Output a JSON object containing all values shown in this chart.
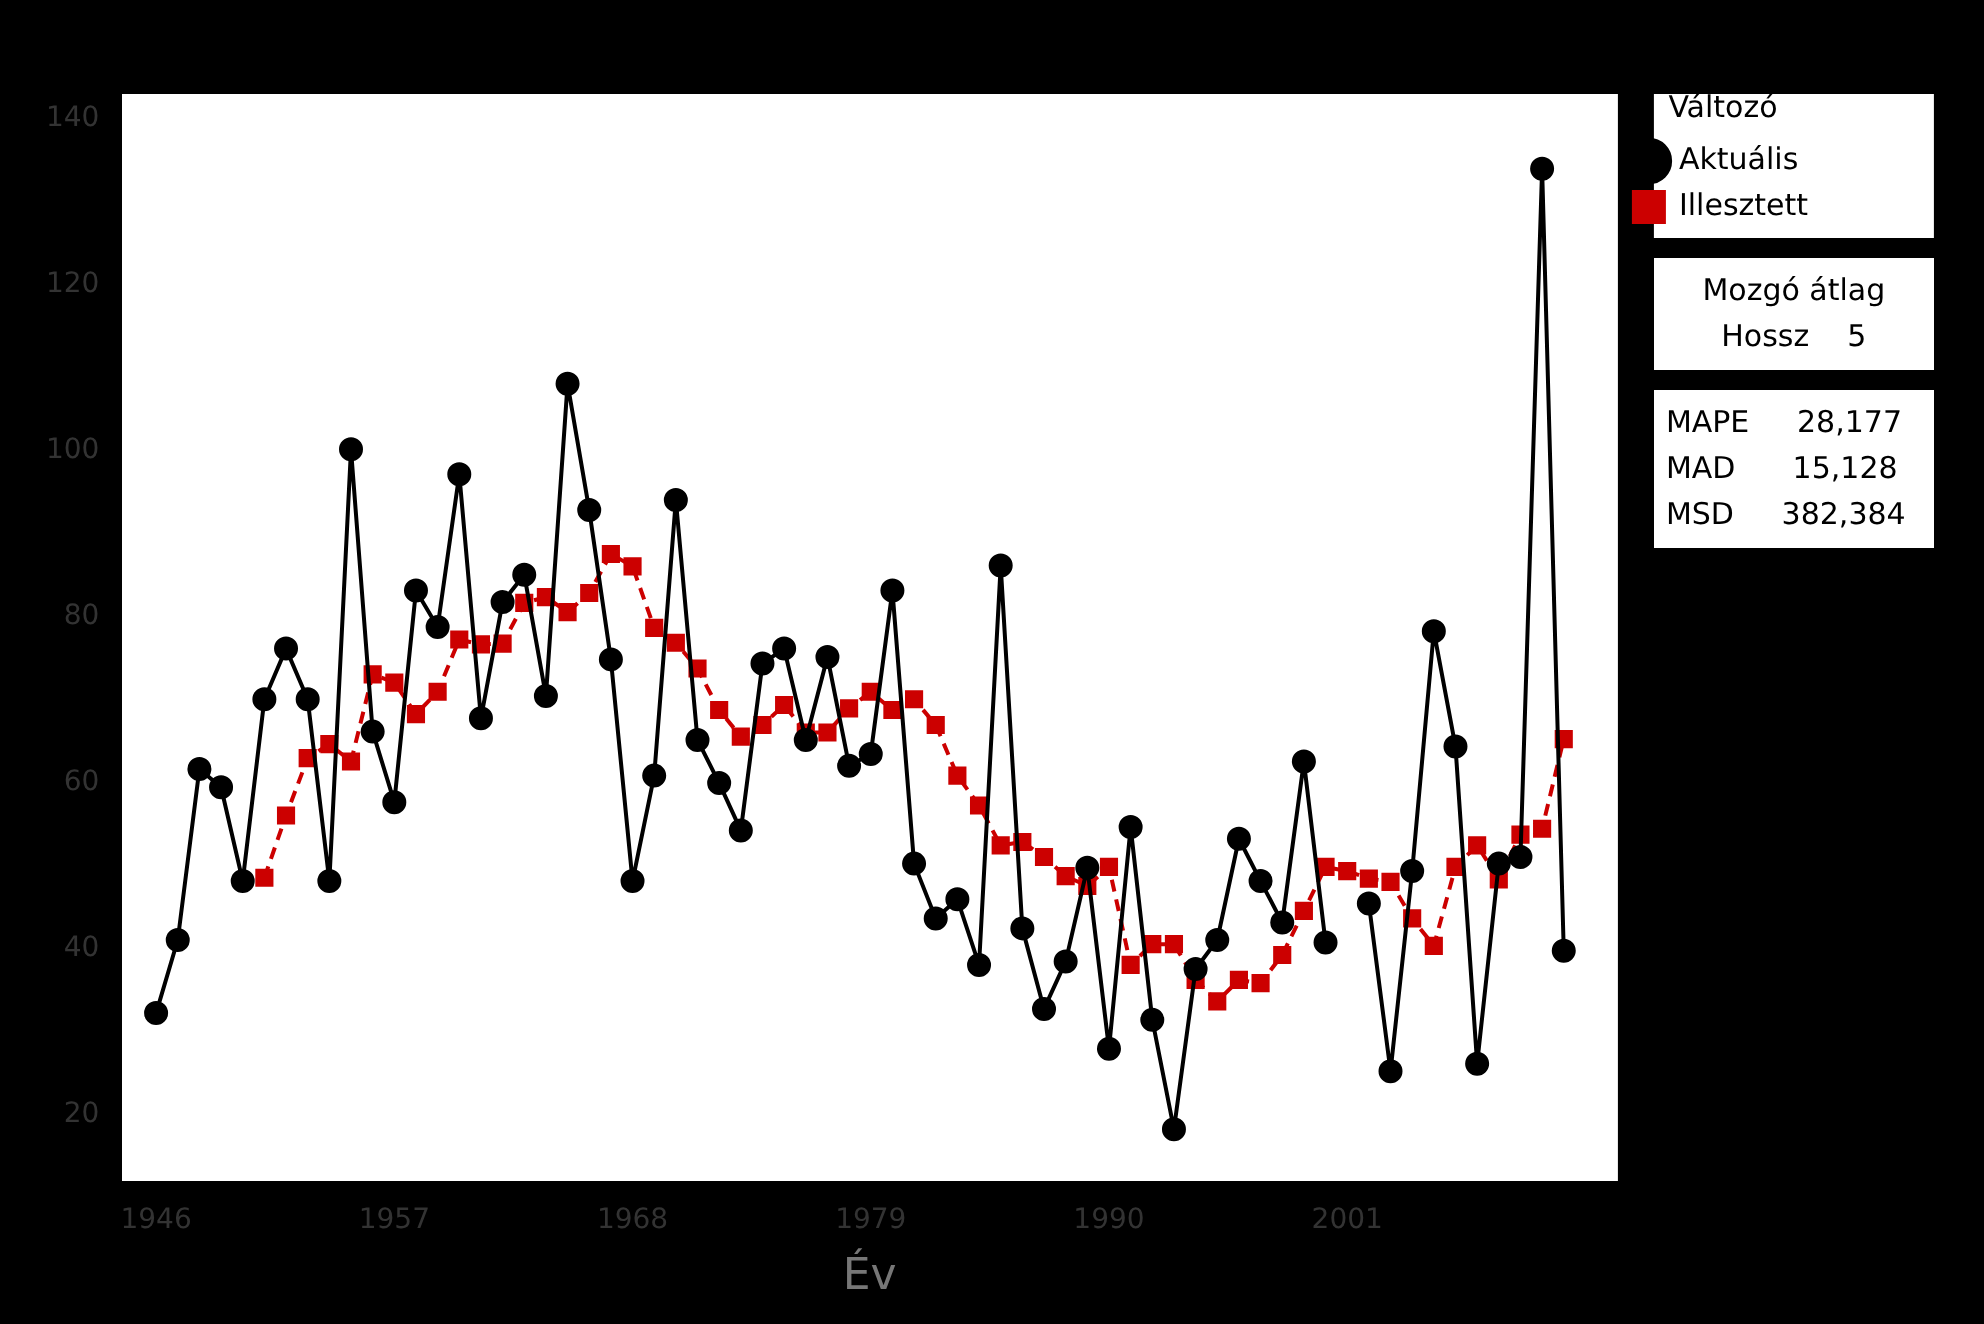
{
  "chart_data": {
    "type": "line",
    "xlabel": "Év",
    "legend_title": "Változó",
    "legend": "right",
    "grid": false,
    "x": [
      1946,
      1947,
      1948,
      1949,
      1950,
      1951,
      1952,
      1953,
      1954,
      1955,
      1956,
      1957,
      1958,
      1959,
      1960,
      1961,
      1962,
      1963,
      1964,
      1965,
      1966,
      1967,
      1968,
      1969,
      1970,
      1971,
      1972,
      1973,
      1974,
      1975,
      1976,
      1977,
      1978,
      1979,
      1980,
      1981,
      1982,
      1983,
      1984,
      1985,
      1986,
      1987,
      1988,
      1989,
      1990,
      1991,
      1992,
      1993,
      1994,
      1995,
      1996,
      1997,
      1998,
      1999,
      2000,
      2001,
      2002,
      2003,
      2004,
      2005,
      2006,
      2007,
      2008,
      2009,
      2010,
      2011
    ],
    "xlim": [
      1944.4,
      2013.5
    ],
    "xticks": [
      1946,
      1957,
      1968,
      1979,
      1990,
      2001
    ],
    "ylim": [
      12,
      143
    ],
    "yticks": [
      20,
      40,
      60,
      80,
      100,
      120,
      140
    ],
    "series": [
      {
        "name": "Aktuális",
        "color": "#000000",
        "marker": "circle",
        "line_style": "solid",
        "values": [
          32.3,
          41.1,
          61.7,
          59.5,
          48.2,
          70.1,
          76.2,
          70.1,
          48.2,
          100.2,
          66.2,
          57.7,
          83.2,
          78.8,
          97.2,
          67.8,
          81.8,
          85.1,
          70.5,
          108.1,
          92.9,
          74.9,
          48.2,
          60.9,
          94.1,
          65.2,
          60.0,
          54.3,
          74.4,
          76.2,
          65.2,
          75.2,
          62.1,
          63.5,
          83.2,
          50.3,
          43.7,
          46.0,
          38.1,
          86.2,
          42.5,
          32.8,
          38.5,
          49.8,
          28.0,
          54.7,
          31.5,
          18.3,
          37.6,
          41.1,
          53.3,
          48.2,
          43.2,
          62.6,
          40.8,
          null,
          45.5,
          25.3,
          49.4,
          78.3,
          64.4,
          26.2,
          50.3,
          51.1,
          134.0,
          39.8
        ]
      },
      {
        "name": "Illesztett",
        "color": "#cc0000",
        "marker": "square",
        "line_style": "dashed",
        "values": [
          null,
          null,
          null,
          null,
          null,
          48.6,
          56.1,
          63.0,
          64.7,
          62.6,
          73.1,
          72.1,
          68.3,
          71.0,
          77.3,
          76.7,
          76.8,
          81.7,
          82.4,
          80.6,
          82.9,
          87.6,
          86.1,
          78.7,
          76.9,
          73.8,
          68.8,
          65.6,
          67.0,
          69.4,
          66.1,
          66.1,
          69.0,
          71.0,
          68.8,
          70.1,
          67.0,
          60.9,
          57.3,
          52.5,
          52.9,
          51.1,
          48.8,
          47.6,
          49.9,
          38.1,
          40.6,
          40.6,
          36.3,
          33.7,
          36.3,
          35.9,
          39.3,
          44.6,
          49.9,
          49.4,
          48.5,
          48.1,
          43.7,
          40.4,
          49.9,
          52.5,
          48.4,
          53.8,
          54.5,
          65.3
        ]
      }
    ],
    "annotations": [
      "Mozgó átlag",
      "Hossz    5",
      "MAPE     28,177",
      "MAD      15,128",
      "MSD     382,384"
    ]
  }
}
